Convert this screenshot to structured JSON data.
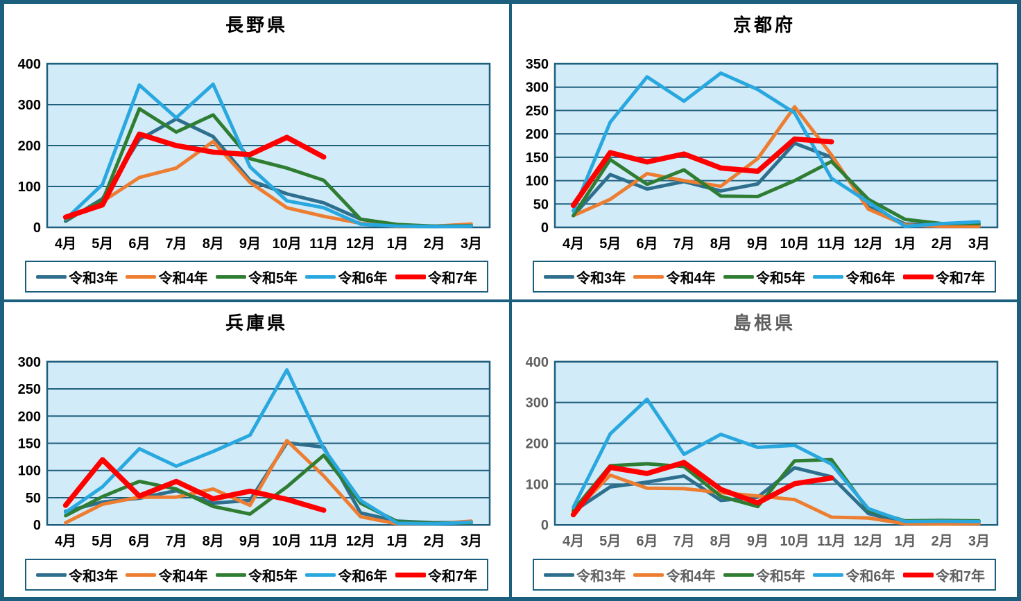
{
  "colors": {
    "plot_bg": "#D2EBF8",
    "grid": "#1F5F7E",
    "border": "#1B5E7D",
    "panel_bg": "#FFFFFF",
    "series": {
      "令和3年": "#2E6F8E",
      "令和4年": "#ED7D31",
      "令和5年": "#2E7D32",
      "令和6年": "#29A8E0",
      "令和7年": "#FF0000"
    }
  },
  "chart_data": [
    {
      "id": "nagano",
      "type": "line",
      "title": "長野県",
      "title_color": "#000000",
      "label_color": "#000000",
      "ylim": [
        0,
        400
      ],
      "ystep": 100,
      "grid": true,
      "legend_position": "bottom",
      "categories": [
        "4月",
        "5月",
        "6月",
        "7月",
        "8月",
        "9月",
        "10月",
        "11月",
        "12月",
        "1月",
        "2月",
        "3月"
      ],
      "series": [
        {
          "name": "令和3年",
          "color": "#2E6F8E",
          "line_width": 5,
          "values": [
            15,
            70,
            215,
            265,
            222,
            115,
            82,
            60,
            20,
            5,
            3,
            5
          ]
        },
        {
          "name": "令和4年",
          "color": "#ED7D31",
          "line_width": 5,
          "values": [
            20,
            63,
            122,
            145,
            210,
            110,
            48,
            27,
            10,
            2,
            3,
            8
          ]
        },
        {
          "name": "令和5年",
          "color": "#2E7D32",
          "line_width": 5,
          "values": [
            18,
            65,
            290,
            233,
            275,
            168,
            145,
            115,
            20,
            7,
            3,
            4
          ]
        },
        {
          "name": "令和6年",
          "color": "#29A8E0",
          "line_width": 5,
          "values": [
            20,
            105,
            348,
            268,
            350,
            148,
            65,
            48,
            8,
            3,
            2,
            3
          ]
        },
        {
          "name": "令和7年",
          "color": "#FF0000",
          "line_width": 7.5,
          "values": [
            25,
            55,
            228,
            200,
            184,
            178,
            220,
            172,
            null,
            null,
            null,
            null
          ]
        }
      ]
    },
    {
      "id": "kyoto",
      "type": "line",
      "title": "京都府",
      "title_color": "#000000",
      "label_color": "#000000",
      "ylim": [
        0,
        350
      ],
      "ystep": 50,
      "grid": true,
      "legend_position": "bottom",
      "categories": [
        "4月",
        "5月",
        "6月",
        "7月",
        "8月",
        "9月",
        "10月",
        "11月",
        "12月",
        "1月",
        "2月",
        "3月"
      ],
      "series": [
        {
          "name": "令和3年",
          "color": "#2E6F8E",
          "line_width": 5,
          "values": [
            25,
            113,
            82,
            98,
            78,
            93,
            180,
            150,
            44,
            7,
            5,
            5
          ]
        },
        {
          "name": "令和4年",
          "color": "#ED7D31",
          "line_width": 5,
          "values": [
            25,
            60,
            115,
            100,
            88,
            147,
            258,
            155,
            39,
            5,
            2,
            2
          ]
        },
        {
          "name": "令和5年",
          "color": "#2E7D32",
          "line_width": 5,
          "values": [
            25,
            145,
            92,
            123,
            67,
            66,
            100,
            141,
            60,
            17,
            8,
            8
          ]
        },
        {
          "name": "令和6年",
          "color": "#29A8E0",
          "line_width": 5,
          "values": [
            35,
            225,
            322,
            270,
            330,
            295,
            245,
            105,
            54,
            2,
            8,
            12
          ]
        },
        {
          "name": "令和7年",
          "color": "#FF0000",
          "line_width": 7.5,
          "values": [
            47,
            160,
            140,
            157,
            127,
            120,
            189,
            183,
            null,
            null,
            null,
            null
          ]
        }
      ]
    },
    {
      "id": "hyogo",
      "type": "line",
      "title": "兵庫県",
      "title_color": "#000000",
      "label_color": "#000000",
      "ylim": [
        0,
        300
      ],
      "ystep": 50,
      "grid": true,
      "legend_position": "bottom",
      "categories": [
        "4月",
        "5月",
        "6月",
        "7月",
        "8月",
        "9月",
        "10月",
        "11月",
        "12月",
        "1月",
        "2月",
        "3月"
      ],
      "series": [
        {
          "name": "令和3年",
          "color": "#2E6F8E",
          "line_width": 5,
          "values": [
            25,
            42,
            49,
            63,
            40,
            45,
            151,
            143,
            22,
            7,
            4,
            5
          ]
        },
        {
          "name": "令和4年",
          "color": "#ED7D31",
          "line_width": 5,
          "values": [
            4,
            38,
            51,
            51,
            66,
            36,
            155,
            90,
            15,
            2,
            2,
            7
          ]
        },
        {
          "name": "令和5年",
          "color": "#2E7D32",
          "line_width": 5,
          "values": [
            17,
            52,
            80,
            66,
            34,
            20,
            70,
            128,
            40,
            6,
            3,
            4
          ]
        },
        {
          "name": "令和6年",
          "color": "#29A8E0",
          "line_width": 5,
          "values": [
            23,
            70,
            140,
            108,
            135,
            165,
            285,
            140,
            45,
            3,
            2,
            5
          ]
        },
        {
          "name": "令和7年",
          "color": "#FF0000",
          "line_width": 7.5,
          "values": [
            36,
            120,
            53,
            80,
            48,
            62,
            47,
            27,
            null,
            null,
            null,
            null
          ]
        }
      ]
    },
    {
      "id": "shimane",
      "type": "line",
      "title": "島根県",
      "title_color": "#5F5F5F",
      "label_color": "#5F5F5F",
      "ylim": [
        0,
        400
      ],
      "ystep": 100,
      "grid": true,
      "legend_position": "bottom",
      "categories": [
        "4月",
        "5月",
        "6月",
        "7月",
        "8月",
        "9月",
        "10月",
        "11月",
        "12月",
        "1月",
        "2月",
        "3月"
      ],
      "series": [
        {
          "name": "令和3年",
          "color": "#2E6F8E",
          "line_width": 5,
          "values": [
            33,
            93,
            105,
            120,
            60,
            68,
            140,
            118,
            28,
            5,
            8,
            5
          ]
        },
        {
          "name": "令和4年",
          "color": "#ED7D31",
          "line_width": 5,
          "values": [
            30,
            122,
            90,
            89,
            79,
            71,
            62,
            19,
            17,
            3,
            2,
            3
          ]
        },
        {
          "name": "令和5年",
          "color": "#2E7D32",
          "line_width": 5,
          "values": [
            36,
            145,
            150,
            143,
            70,
            45,
            157,
            160,
            36,
            10,
            11,
            10
          ]
        },
        {
          "name": "令和6年",
          "color": "#29A8E0",
          "line_width": 5,
          "values": [
            43,
            223,
            308,
            173,
            222,
            190,
            195,
            149,
            40,
            8,
            9,
            8
          ]
        },
        {
          "name": "令和7年",
          "color": "#FF0000",
          "line_width": 7.5,
          "values": [
            25,
            141,
            126,
            153,
            87,
            54,
            101,
            115,
            null,
            null,
            null,
            null
          ]
        }
      ]
    }
  ]
}
